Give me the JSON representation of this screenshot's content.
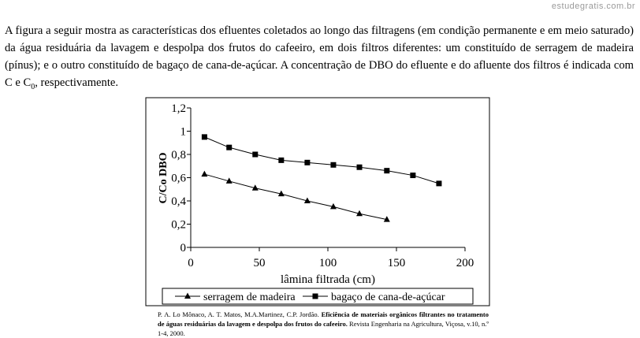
{
  "watermark": "estudegratis.com.br",
  "question": {
    "text_before_sub": "A figura a seguir mostra as características dos efluentes coletados ao longo das filtragens (em condição permanente e em meio saturado) da água residuária da lavagem e despolpa dos frutos do cafeeiro, em dois filtros diferentes: um constituído de serragem de madeira (pínus); e o outro constituído de bagaço de cana-de-açúcar. A concentração de DBO do efluente e do afluente dos filtros é indicada com C e C",
    "sub": "0",
    "text_after_sub": ", respectivamente."
  },
  "citation": {
    "authors": "P. A. Lo Mônaco, A. T. Matos, M.A.Martinez, C.P. Jordão. ",
    "title": "Eficiência de materiais orgânicos filtrantes no tratamento de águas residuárias da lavagem e despolpa dos frutos do cafeeiro.",
    "source": " Revista Engenharia na Agricultura, Viçosa, v.10, n.º 1-4, 2000."
  },
  "chart_data": {
    "type": "line",
    "xlabel": "lâmina filtrada (cm)",
    "ylabel": "C/Co DBO",
    "xlim": [
      0,
      200
    ],
    "ylim": [
      0,
      1.2
    ],
    "x_ticks": [
      "0",
      "50",
      "100",
      "150",
      "200"
    ],
    "y_ticks": [
      "0",
      "0,2",
      "0,4",
      "0,6",
      "0,8",
      "1",
      "1,2"
    ],
    "grid": false,
    "legend_position": "bottom",
    "series": [
      {
        "name": "serragem de madeira",
        "marker": "triangle",
        "x": [
          10,
          28,
          47,
          66,
          85,
          104,
          123,
          143
        ],
        "y": [
          0.63,
          0.57,
          0.51,
          0.46,
          0.4,
          0.35,
          0.29,
          0.24
        ]
      },
      {
        "name": "bagaço de cana-de-açúcar",
        "marker": "square",
        "x": [
          10,
          28,
          47,
          66,
          85,
          104,
          123,
          143,
          162,
          181
        ],
        "y": [
          0.95,
          0.86,
          0.8,
          0.75,
          0.73,
          0.71,
          0.69,
          0.66,
          0.62,
          0.55
        ]
      }
    ]
  }
}
